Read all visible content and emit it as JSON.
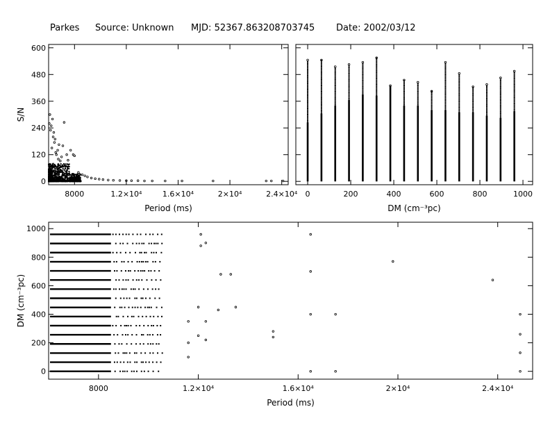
{
  "header": {
    "telescope": "Parkes",
    "source": "Source: Unknown",
    "mjd": "MJD: 52367.863208703745",
    "date": "Date: 2002/03/12"
  },
  "chart_data": [
    {
      "type": "scatter",
      "panel": "sn-vs-period",
      "xlabel": "Period (ms)",
      "ylabel": "S/N",
      "xlim": [
        6000,
        24500
      ],
      "ylim": [
        -15,
        615
      ],
      "xticks": [
        {
          "v": 8000,
          "label": "8000"
        },
        {
          "v": 12000,
          "label": "1.2×10⁴"
        },
        {
          "v": 16000,
          "label": "1.6×10⁴"
        },
        {
          "v": 20000,
          "label": "2×10⁴"
        },
        {
          "v": 24000,
          "label": "2.4×10⁴"
        }
      ],
      "yticks": [
        {
          "v": 0,
          "label": "0"
        },
        {
          "v": 120,
          "label": "120"
        },
        {
          "v": 240,
          "label": "240"
        },
        {
          "v": 360,
          "label": "360"
        },
        {
          "v": 480,
          "label": "480"
        },
        {
          "v": 600,
          "label": "600"
        }
      ],
      "points": [
        [
          6100,
          300
        ],
        [
          6200,
          250
        ],
        [
          6300,
          280
        ],
        [
          6400,
          220
        ],
        [
          6500,
          190
        ],
        [
          6250,
          150
        ],
        [
          6600,
          120
        ],
        [
          6750,
          100
        ],
        [
          6900,
          92
        ],
        [
          7100,
          160
        ],
        [
          7200,
          265
        ],
        [
          7400,
          120
        ],
        [
          7500,
          95
        ],
        [
          7700,
          140
        ],
        [
          7900,
          120
        ],
        [
          8000,
          115
        ],
        [
          6800,
          165
        ],
        [
          7000,
          110
        ],
        [
          6350,
          200
        ],
        [
          6150,
          230
        ],
        [
          6050,
          260
        ],
        [
          6450,
          175
        ],
        [
          6700,
          140
        ],
        [
          6550,
          130
        ],
        [
          8300,
          40
        ],
        [
          8600,
          30
        ],
        [
          8800,
          25
        ],
        [
          9000,
          20
        ],
        [
          9300,
          15
        ],
        [
          9600,
          12
        ],
        [
          9900,
          10
        ],
        [
          10200,
          8
        ],
        [
          10600,
          6
        ],
        [
          11000,
          5
        ],
        [
          11500,
          4
        ],
        [
          12000,
          3
        ],
        [
          12400,
          3
        ],
        [
          12900,
          3
        ],
        [
          13400,
          2
        ],
        [
          14000,
          2
        ],
        [
          15000,
          2
        ],
        [
          16300,
          2
        ],
        [
          18700,
          2
        ],
        [
          22800,
          2
        ],
        [
          23200,
          2
        ],
        [
          24100,
          2
        ]
      ]
    },
    {
      "type": "scatter",
      "panel": "sn-vs-dm",
      "xlabel": "DM (cm⁻³pc)",
      "ylabel": "",
      "xlim": [
        -55,
        1045
      ],
      "ylim": [
        -15,
        615
      ],
      "xticks": [
        {
          "v": 0,
          "label": "0"
        },
        {
          "v": 200,
          "label": "200"
        },
        {
          "v": 400,
          "label": "400"
        },
        {
          "v": 600,
          "label": "600"
        },
        {
          "v": 800,
          "label": "800"
        },
        {
          "v": 1000,
          "label": "1000"
        }
      ],
      "yticks": [
        {
          "v": 0,
          "label": ""
        },
        {
          "v": 120,
          "label": ""
        },
        {
          "v": 240,
          "label": ""
        },
        {
          "v": 360,
          "label": ""
        },
        {
          "v": 480,
          "label": ""
        },
        {
          "v": 600,
          "label": ""
        }
      ],
      "columns": [
        {
          "dm": 0,
          "solid_top": 265,
          "max": 545
        },
        {
          "dm": 64,
          "solid_top": 305,
          "max": 545
        },
        {
          "dm": 128,
          "solid_top": 340,
          "max": 515
        },
        {
          "dm": 192,
          "solid_top": 365,
          "max": 525
        },
        {
          "dm": 256,
          "solid_top": 390,
          "max": 535
        },
        {
          "dm": 320,
          "solid_top": 385,
          "max": 555
        },
        {
          "dm": 384,
          "solid_top": 430,
          "max": 430
        },
        {
          "dm": 448,
          "solid_top": 340,
          "max": 455
        },
        {
          "dm": 512,
          "solid_top": 340,
          "max": 445
        },
        {
          "dm": 576,
          "solid_top": 320,
          "max": 405
        },
        {
          "dm": 640,
          "solid_top": 320,
          "max": 535
        },
        {
          "dm": 704,
          "solid_top": 310,
          "max": 485
        },
        {
          "dm": 768,
          "solid_top": 310,
          "max": 425
        },
        {
          "dm": 832,
          "solid_top": 295,
          "max": 435
        },
        {
          "dm": 896,
          "solid_top": 285,
          "max": 465
        },
        {
          "dm": 960,
          "solid_top": 315,
          "max": 495
        }
      ]
    },
    {
      "type": "scatter",
      "panel": "dm-vs-period",
      "xlabel": "Period (ms)",
      "ylabel": "DM (cm⁻³pc)",
      "xlim": [
        6000,
        25400
      ],
      "ylim": [
        -55,
        1045
      ],
      "xticks": [
        {
          "v": 8000,
          "label": "8000"
        },
        {
          "v": 12000,
          "label": "1.2×10⁴"
        },
        {
          "v": 16000,
          "label": "1.6×10⁴"
        },
        {
          "v": 20000,
          "label": "2×10⁴"
        },
        {
          "v": 24000,
          "label": "2.4×10⁴"
        }
      ],
      "yticks": [
        {
          "v": 0,
          "label": "0"
        },
        {
          "v": 200,
          "label": "200"
        },
        {
          "v": 400,
          "label": "400"
        },
        {
          "v": 600,
          "label": "600"
        },
        {
          "v": 800,
          "label": "800"
        },
        {
          "v": 1000,
          "label": "1000"
        }
      ],
      "dm_rows": [
        0,
        64,
        128,
        192,
        256,
        320,
        384,
        448,
        512,
        576,
        640,
        704,
        768,
        832,
        896,
        960
      ],
      "dense_period_range": [
        6000,
        8500
      ],
      "sparse_period_max": 10400,
      "outliers": [
        [
          11600,
          350
        ],
        [
          11600,
          200
        ],
        [
          11600,
          100
        ],
        [
          12000,
          450
        ],
        [
          12000,
          250
        ],
        [
          12300,
          350
        ],
        [
          12300,
          220
        ],
        [
          12100,
          880
        ],
        [
          12100,
          960
        ],
        [
          12300,
          900
        ],
        [
          12800,
          430
        ],
        [
          12900,
          680
        ],
        [
          13300,
          680
        ],
        [
          13500,
          450
        ],
        [
          15000,
          240
        ],
        [
          15000,
          280
        ],
        [
          16500,
          960
        ],
        [
          16500,
          700
        ],
        [
          16500,
          400
        ],
        [
          16500,
          0
        ],
        [
          17500,
          400
        ],
        [
          17500,
          0
        ],
        [
          19800,
          770
        ],
        [
          23800,
          640
        ],
        [
          24900,
          400
        ],
        [
          24900,
          260
        ],
        [
          24900,
          130
        ],
        [
          24900,
          0
        ]
      ]
    }
  ]
}
